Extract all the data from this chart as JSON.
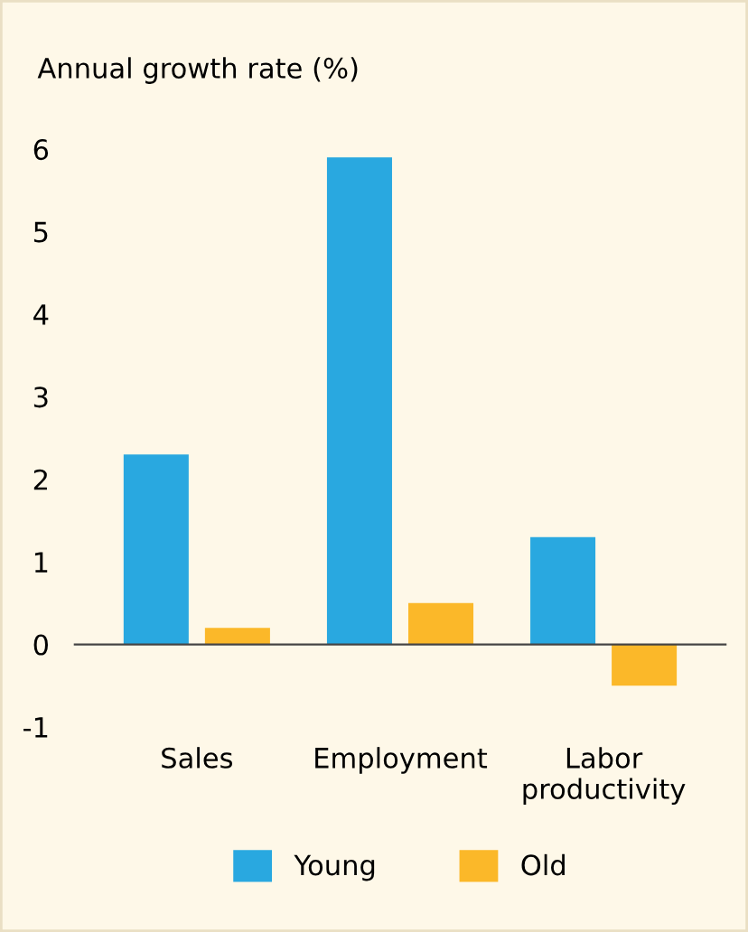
{
  "chart_data": {
    "type": "bar",
    "ylabel": "Annual growth rate (%)",
    "categories": [
      "Sales",
      "Employment",
      "Labor\nproductivity"
    ],
    "series": [
      {
        "name": "Young",
        "color": "#29a8e0",
        "values": [
          2.3,
          5.9,
          1.3
        ]
      },
      {
        "name": "Old",
        "color": "#fbb829",
        "values": [
          0.2,
          0.5,
          -0.5
        ]
      }
    ],
    "ylim": [
      -1,
      6
    ],
    "yticks": [
      -1,
      0,
      1,
      2,
      3,
      4,
      5,
      6
    ],
    "legend": "bottom"
  }
}
